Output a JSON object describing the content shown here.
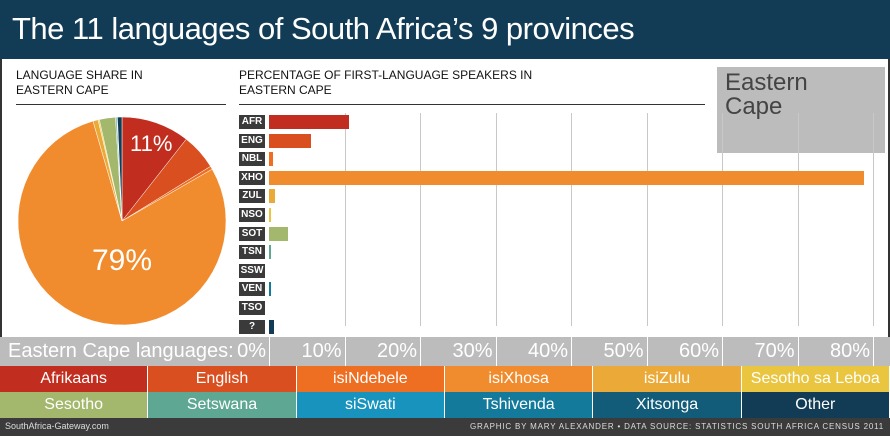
{
  "title": "The 11 languages of South Africa’s 9 provinces",
  "pie_header": [
    "LANGUAGE SHARE IN",
    "EASTERN CAPE"
  ],
  "bar_header": [
    "PERCENTAGE OF FIRST-LANGUAGE SPEAKERS IN",
    "EASTERN CAPE"
  ],
  "region_name": "Eastern Cape",
  "pie_labels": {
    "afr": "11%",
    "xho": "79%"
  },
  "axis": {
    "title": "Eastern Cape languages:",
    "ticks": [
      "0%",
      "10%",
      "20%",
      "30%",
      "40%",
      "50%",
      "60%",
      "70%",
      "80%"
    ]
  },
  "legend_row1": [
    "Afrikaans",
    "English",
    "isiNdebele",
    "isiXhosa",
    "isiZulu",
    "Sesotho sa Leboa"
  ],
  "legend_row2": [
    "Sesotho",
    "Setswana",
    "siSwati",
    "Tshivenda",
    "Xitsonga",
    "Other"
  ],
  "footer": {
    "left": "SouthAfrica-Gateway.com",
    "right": "GRAPHIC BY MARY ALEXANDER • DATA SOURCE: STATISTICS SOUTH AFRICA CENSUS 2011"
  },
  "colors": {
    "AFR": "#c12e1f",
    "ENG": "#d94f20",
    "NBL": "#ee6e22",
    "XHO": "#f08c2e",
    "ZUL": "#ebaa38",
    "NSO": "#e9c540",
    "SOT": "#a3b86c",
    "TSN": "#5ea893",
    "SSW": "#1893bd",
    "VEN": "#137a9b",
    "TSO": "#125c7a",
    "OTH": "#123c55"
  },
  "chart_data": [
    {
      "type": "pie",
      "title": "Language share in Eastern Cape",
      "categories": [
        "Afrikaans",
        "English",
        "isiNdebele",
        "isiXhosa",
        "isiZulu",
        "Sesotho sa Leboa",
        "Sesotho",
        "Setswana",
        "siSwati",
        "Tshivenda",
        "Xitsonga",
        "Other"
      ],
      "values": [
        10.6,
        5.6,
        0.5,
        78.8,
        0.8,
        0.2,
        2.5,
        0.2,
        0.0,
        0.1,
        0.0,
        0.7
      ],
      "annotations": [
        "11%",
        "79%"
      ]
    },
    {
      "type": "bar",
      "orientation": "horizontal",
      "title": "Percentage of first-language speakers in Eastern Cape",
      "categories": [
        "AFR",
        "ENG",
        "NBL",
        "XHO",
        "ZUL",
        "NSO",
        "SOT",
        "TSN",
        "SSW",
        "VEN",
        "TSO",
        "?"
      ],
      "values": [
        10.6,
        5.6,
        0.5,
        78.8,
        0.8,
        0.2,
        2.5,
        0.2,
        0.0,
        0.1,
        0.0,
        0.7
      ],
      "xlabel": "Eastern Cape languages:",
      "xticks": [
        "0%",
        "10%",
        "20%",
        "30%",
        "40%",
        "50%",
        "60%",
        "70%",
        "80%"
      ],
      "xlim": [
        0,
        80
      ],
      "grid": true
    }
  ]
}
